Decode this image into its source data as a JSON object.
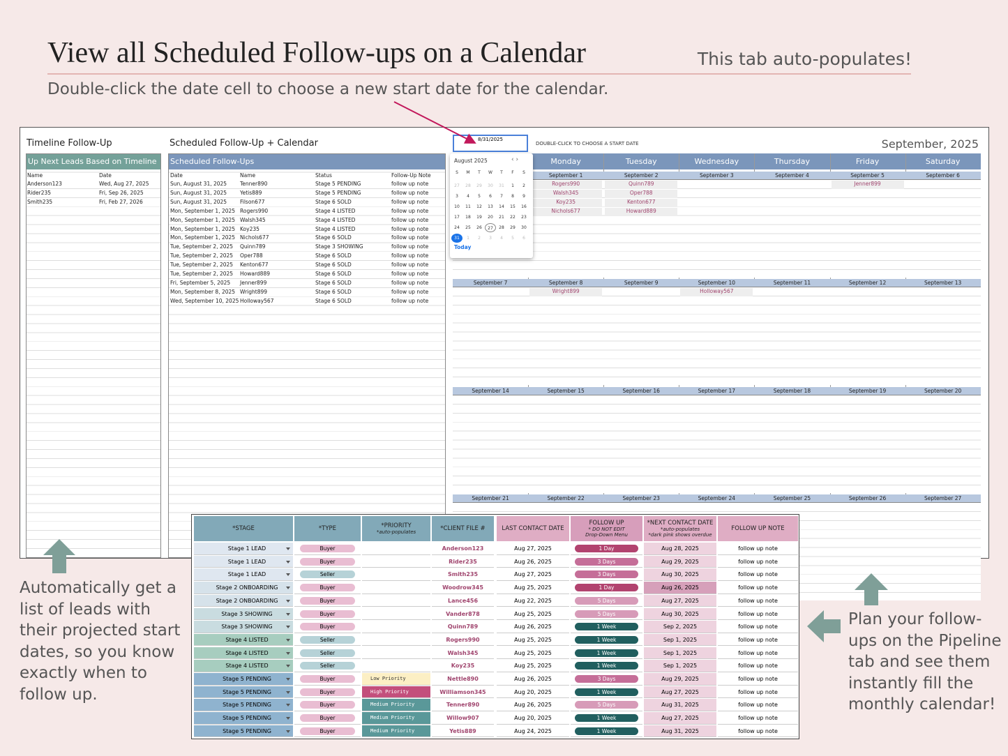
{
  "header": {
    "title": "View all Scheduled Follow-ups on a Calendar",
    "note": "This tab auto-populates!",
    "instruction": "Double-click the date cell to choose a new start date for the calendar."
  },
  "timeline": {
    "title": "Timeline Follow-Up",
    "header": "Up Next Leads Based on Timeline",
    "columns": [
      "Name",
      "Date"
    ],
    "rows": [
      [
        "Anderson123",
        "Wed, Aug 27, 2025"
      ],
      [
        "Rider235",
        "Fri, Sep 26, 2025"
      ],
      [
        "Smith235",
        "Fri, Feb 27, 2026"
      ]
    ]
  },
  "scheduled": {
    "title": "Scheduled Follow-Up + Calendar",
    "header": "Scheduled Follow-Ups",
    "columns": [
      "Date",
      "Name",
      "Status",
      "Follow-Up Note"
    ],
    "rows": [
      [
        "Sun, August 31, 2025",
        "Tenner890",
        "Stage 5 PENDING",
        "follow up note"
      ],
      [
        "Sun, August 31, 2025",
        "Yetis889",
        "Stage 5 PENDING",
        "follow up note"
      ],
      [
        "Sun, August 31, 2025",
        "Filson677",
        "Stage 6 SOLD",
        "follow up note"
      ],
      [
        "Mon, September 1, 2025",
        "Rogers990",
        "Stage 4 LISTED",
        "follow up note"
      ],
      [
        "Mon, September 1, 2025",
        "Walsh345",
        "Stage 4 LISTED",
        "follow up note"
      ],
      [
        "Mon, September 1, 2025",
        "Koy235",
        "Stage 4 LISTED",
        "follow up note"
      ],
      [
        "Mon, September 1, 2025",
        "Nichols677",
        "Stage 6 SOLD",
        "follow up note"
      ],
      [
        "Tue, September 2, 2025",
        "Quinn789",
        "Stage 3 SHOWING",
        "follow up note"
      ],
      [
        "Tue, September 2, 2025",
        "Oper788",
        "Stage 6 SOLD",
        "follow up note"
      ],
      [
        "Tue, September 2, 2025",
        "Kenton677",
        "Stage 6 SOLD",
        "follow up note"
      ],
      [
        "Tue, September 2, 2025",
        "Howard889",
        "Stage 6 SOLD",
        "follow up note"
      ],
      [
        "Fri, September 5, 2025",
        "Jenner899",
        "Stage 6 SOLD",
        "follow up note"
      ],
      [
        "Mon, September 8, 2025",
        "Wright899",
        "Stage 6 SOLD",
        "follow up note"
      ],
      [
        "Wed, September 10, 2025",
        "Holloway567",
        "Stage 6 SOLD",
        "follow up note"
      ]
    ]
  },
  "calendar": {
    "date_cell": "8/31/2025",
    "hint": "DOUBLE-CLICK TO CHOOSE A START DATE",
    "month_label": "September, 2025",
    "days": [
      null,
      "Monday",
      "Tuesday",
      "Wednesday",
      "Thursday",
      "Friday",
      "Saturday"
    ],
    "weeks": [
      {
        "dates": [
          null,
          "September 1",
          "September 2",
          "September 3",
          "September 4",
          "September 5",
          "September 6"
        ],
        "entries": [
          [],
          [
            "Rogers990",
            "Walsh345",
            "Koy235",
            "Nichols677"
          ],
          [
            "Quinn789",
            "Oper788",
            "Kenton677",
            "Howard889"
          ],
          [],
          [],
          [
            "Jenner899"
          ],
          []
        ]
      },
      {
        "dates": [
          "September 7",
          "September 8",
          "September 9",
          "September 10",
          "September 11",
          "September 12",
          "September 13"
        ],
        "entries": [
          [],
          [
            "Wright899"
          ],
          [],
          [
            "Holloway567"
          ],
          [],
          [],
          []
        ]
      },
      {
        "dates": [
          "September 14",
          "September 15",
          "September 16",
          "September 17",
          "September 18",
          "September 19",
          "September 20"
        ],
        "entries": [
          [],
          [],
          [],
          [],
          [],
          [],
          []
        ]
      },
      {
        "dates": [
          "September 21",
          "September 22",
          "September 23",
          "September 24",
          "September 25",
          "September 26",
          "September 27"
        ],
        "entries": [
          [],
          [],
          [],
          [],
          [],
          [],
          []
        ]
      }
    ]
  },
  "datepicker": {
    "month": "August 2025",
    "weekdays": [
      "S",
      "M",
      "T",
      "W",
      "T",
      "F",
      "S"
    ],
    "weeks": [
      [
        27,
        28,
        29,
        30,
        31,
        1,
        2
      ],
      [
        3,
        4,
        5,
        6,
        7,
        8,
        9
      ],
      [
        10,
        11,
        12,
        13,
        14,
        15,
        16
      ],
      [
        17,
        18,
        19,
        20,
        21,
        22,
        23
      ],
      [
        24,
        25,
        26,
        27,
        28,
        29,
        30
      ],
      [
        31,
        1,
        2,
        3,
        4,
        5,
        6
      ]
    ],
    "today": "Today"
  },
  "pipeline": {
    "headers": [
      [
        "*STAGE"
      ],
      [
        "*TYPE"
      ],
      [
        "*PRIORITY",
        "*auto-populates"
      ],
      [
        "*CLIENT FILE #"
      ],
      [
        "LAST CONTACT DATE"
      ],
      [
        "FOLLOW UP",
        "* DO NOT EDIT",
        "Drop-Down Menu"
      ],
      [
        "*NEXT CONTACT DATE",
        "*auto-populates",
        "*dark pink shows overdue"
      ],
      [
        "FOLLOW UP NOTE"
      ]
    ],
    "rows": [
      [
        "Stage 1 LEAD",
        "Buyer",
        null,
        "Anderson123",
        "Aug 27, 2025",
        "1 Day",
        "Aug 28, 2025",
        "follow up note"
      ],
      [
        "Stage 1 LEAD",
        "Buyer",
        null,
        "Rider235",
        "Aug 26, 2025",
        "3 Days",
        "Aug 29, 2025",
        "follow up note"
      ],
      [
        "Stage 1 LEAD",
        "Seller",
        null,
        "Smith235",
        "Aug 27, 2025",
        "3 Days",
        "Aug 30, 2025",
        "follow up note"
      ],
      [
        "Stage 2 ONBOARDING",
        "Buyer",
        null,
        "Woodrow345",
        "Aug 25, 2025",
        "1 Day",
        "Aug 26, 2025",
        "follow up note"
      ],
      [
        "Stage 2 ONBOARDING",
        "Buyer",
        null,
        "Lance456",
        "Aug 22, 2025",
        "5 Days",
        "Aug 27, 2025",
        "follow up note"
      ],
      [
        "Stage 3 SHOWING",
        "Buyer",
        null,
        "Vander878",
        "Aug 25, 2025",
        "5 Days",
        "Aug 30, 2025",
        "follow up note"
      ],
      [
        "Stage 3 SHOWING",
        "Buyer",
        null,
        "Quinn789",
        "Aug 26, 2025",
        "1 Week",
        "Sep 2, 2025",
        "follow up note"
      ],
      [
        "Stage 4 LISTED",
        "Seller",
        null,
        "Rogers990",
        "Aug 25, 2025",
        "1 Week",
        "Sep 1, 2025",
        "follow up note"
      ],
      [
        "Stage 4 LISTED",
        "Seller",
        null,
        "Walsh345",
        "Aug 25, 2025",
        "1 Week",
        "Sep 1, 2025",
        "follow up note"
      ],
      [
        "Stage 4 LISTED",
        "Seller",
        null,
        "Koy235",
        "Aug 25, 2025",
        "1 Week",
        "Sep 1, 2025",
        "follow up note"
      ],
      [
        "Stage 5 PENDING",
        "Buyer",
        "Low Priority",
        "Nettle890",
        "Aug 26, 2025",
        "3 Days",
        "Aug 29, 2025",
        "follow up note"
      ],
      [
        "Stage 5 PENDING",
        "Buyer",
        "High Priority",
        "Williamson345",
        "Aug 20, 2025",
        "1 Week",
        "Aug 27, 2025",
        "follow up note"
      ],
      [
        "Stage 5 PENDING",
        "Buyer",
        "Medium Priority",
        "Tenner890",
        "Aug 26, 2025",
        "5 Days",
        "Aug 31, 2025",
        "follow up note"
      ],
      [
        "Stage 5 PENDING",
        "Buyer",
        "Medium Priority",
        "Willow907",
        "Aug 20, 2025",
        "1 Week",
        "Aug 27, 2025",
        "follow up note"
      ],
      [
        "Stage 5 PENDING",
        "Buyer",
        "Medium Priority",
        "Yetis889",
        "Aug 24, 2025",
        "1 Week",
        "Aug 31, 2025",
        "follow up note"
      ]
    ]
  },
  "callouts": {
    "left": [
      "Automatically get a",
      "list of leads with",
      "their projected start",
      "dates, so you know",
      "exactly when to",
      "follow up."
    ],
    "right": [
      "Plan your follow-",
      "ups on the Pipeline",
      "tab and see them",
      "instantly fill the",
      "monthly calendar!"
    ]
  }
}
